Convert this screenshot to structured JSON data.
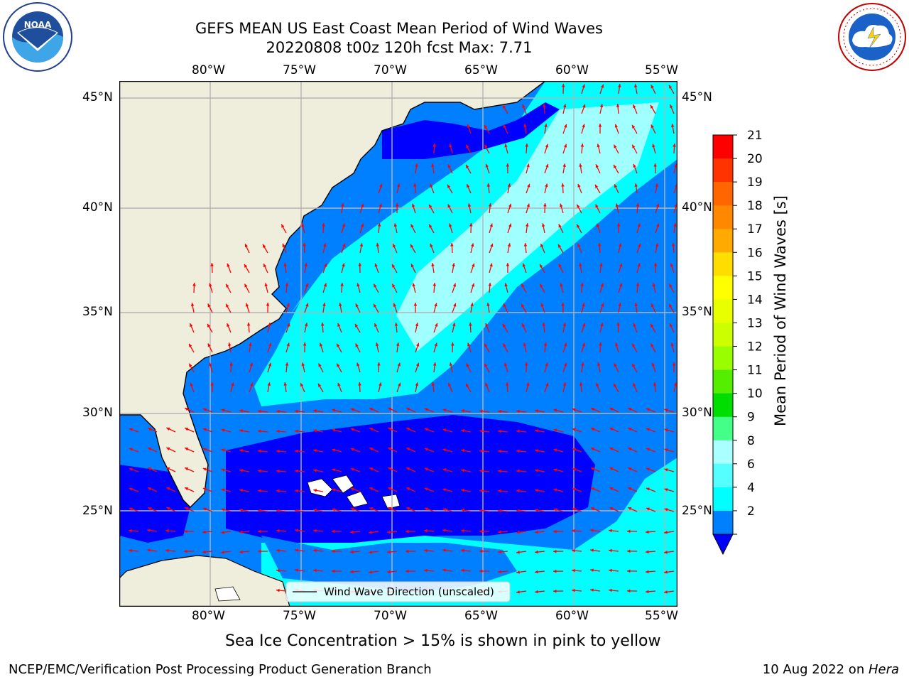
{
  "header": {
    "title_line1": "GEFS MEAN US East Coast Mean Period of Wind Waves",
    "title_line2": "20220808 t00z 120h fcst   Max: 7.71"
  },
  "logos": {
    "left": {
      "icon": "noaa-logo",
      "text": "NOAA"
    },
    "right": {
      "icon": "national-weather-service-logo",
      "text": "NATIONAL WEATHER SERVICE"
    }
  },
  "map": {
    "lon_labels": [
      "80°W",
      "75°W",
      "70°W",
      "65°W",
      "60°W",
      "55°W"
    ],
    "lat_labels": [
      "45°N",
      "40°N",
      "35°N",
      "30°N",
      "25°N"
    ],
    "legend_label": "Wind Wave Direction (unscaled)",
    "colors": {
      "land": "#efeddb",
      "coast": "#000000",
      "arrows": "#ff0000",
      "grid": "#b4b4b4",
      "band_2_4": "#0000ff",
      "band_4_6": "#0080ff",
      "band_6_8": "#00ffff",
      "band_8_9": "#a0ffff"
    }
  },
  "colorbar": {
    "label": "Mean Period of Wind Waves [s]",
    "ticks": [
      "21",
      "20",
      "19",
      "18",
      "17",
      "16",
      "15",
      "14",
      "13",
      "12",
      "11",
      "10",
      "9",
      "8",
      "6",
      "4",
      "2"
    ],
    "colors": [
      "#ff0000",
      "#ff3300",
      "#ff6600",
      "#ff8800",
      "#ffaa00",
      "#ffdd00",
      "#ffff00",
      "#e8ff00",
      "#ccff00",
      "#99ff00",
      "#55ee00",
      "#00dd00",
      "#44ff88",
      "#aaffff",
      "#55ffff",
      "#00ffff",
      "#0080ff"
    ],
    "extend_color": "#0000ff"
  },
  "footer": {
    "note": "Sea Ice Concentration > 15% is shown in pink to yellow",
    "left": "NCEP/EMC/Verification Post Processing Product Generation Branch",
    "right_date": "10 Aug 2022 on ",
    "right_host": "Hera"
  }
}
